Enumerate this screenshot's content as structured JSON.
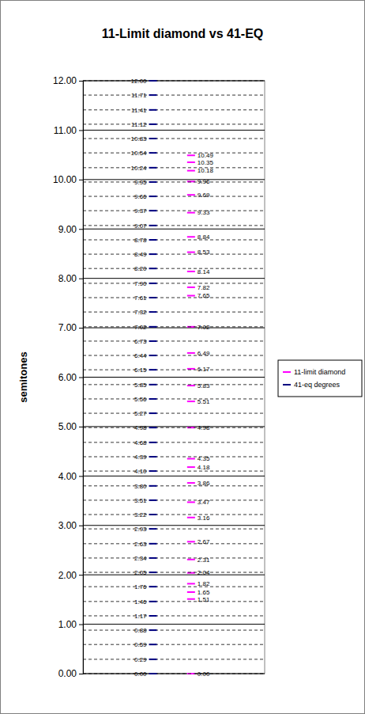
{
  "chart_data": {
    "type": "scatter",
    "title": "11-Limit diamond vs 41-EQ",
    "y_label": "semitones",
    "ylim": [
      0,
      12
    ],
    "yticks": [
      {
        "value": 0,
        "label": "0.00"
      },
      {
        "value": 1,
        "label": "1.00"
      },
      {
        "value": 2,
        "label": "2.00"
      },
      {
        "value": 3,
        "label": "3.00"
      },
      {
        "value": 4,
        "label": "4.00"
      },
      {
        "value": 5,
        "label": "5.00"
      },
      {
        "value": 6,
        "label": "6.00"
      },
      {
        "value": 7,
        "label": "7.00"
      },
      {
        "value": 8,
        "label": "8.00"
      },
      {
        "value": 9,
        "label": "9.00"
      },
      {
        "value": 10,
        "label": "10.00"
      },
      {
        "value": 11,
        "label": "11.00"
      },
      {
        "value": 12,
        "label": "12.00"
      }
    ],
    "grid": true,
    "legend": "right",
    "marker": "dash",
    "data_labels": true,
    "tick_labels": "y",
    "series": [
      {
        "name": "11-limit diamond",
        "color": "#ff00ff",
        "line_style": "none",
        "values": [
          0,
          1.51,
          1.65,
          1.82,
          2.04,
          2.31,
          2.67,
          3.16,
          3.47,
          3.86,
          4.18,
          4.35,
          4.98,
          5.51,
          5.83,
          6.17,
          6.49,
          7.02,
          7.65,
          7.82,
          8.14,
          8.53,
          8.84,
          9.33,
          9.69,
          9.96,
          10.18,
          10.35,
          10.49
        ],
        "value_labels": [
          "0.00",
          "1.51",
          "1.65",
          "1.82",
          "2.04",
          "2.31",
          "2.67",
          "3.16",
          "3.47",
          "3.86",
          "4.18",
          "4.35",
          "4.98",
          "5.51",
          "5.83",
          "6.17",
          "6.49",
          "7.02",
          "7.65",
          "7.82",
          "8.14",
          "8.53",
          "8.84",
          "9.33",
          "9.69",
          "9.96",
          "10.18",
          "10.35",
          "10.49"
        ]
      },
      {
        "name": "41-eq degrees",
        "color": "#000080",
        "line_style": "dashed",
        "values": [
          0,
          0.29,
          0.59,
          0.88,
          1.17,
          1.46,
          1.76,
          2.05,
          2.34,
          2.63,
          2.93,
          3.22,
          3.51,
          3.8,
          4.1,
          4.39,
          4.68,
          4.98,
          5.27,
          5.56,
          5.85,
          6.15,
          6.44,
          6.73,
          7.02,
          7.32,
          7.61,
          7.9,
          8.2,
          8.49,
          8.78,
          9.07,
          9.37,
          9.66,
          9.95,
          10.24,
          10.54,
          10.83,
          11.12,
          11.41,
          11.71,
          12
        ],
        "value_labels": [
          "0.00",
          "0.29",
          "0.59",
          "0.88",
          "1.17",
          "1.46",
          "1.76",
          "2.05",
          "2.34",
          "2.63",
          "2.93",
          "3.22",
          "3.51",
          "3.80",
          "4.10",
          "4.39",
          "4.68",
          "4.98",
          "5.27",
          "5.56",
          "5.85",
          "6.15",
          "6.44",
          "6.73",
          "7.02",
          "7.32",
          "7.61",
          "7.90",
          "8.20",
          "8.49",
          "8.78",
          "9.07",
          "9.37",
          "9.66",
          "9.95",
          "10.24",
          "10.54",
          "10.83",
          "11.12",
          "11.41",
          "11.71",
          "12.00"
        ]
      }
    ]
  }
}
